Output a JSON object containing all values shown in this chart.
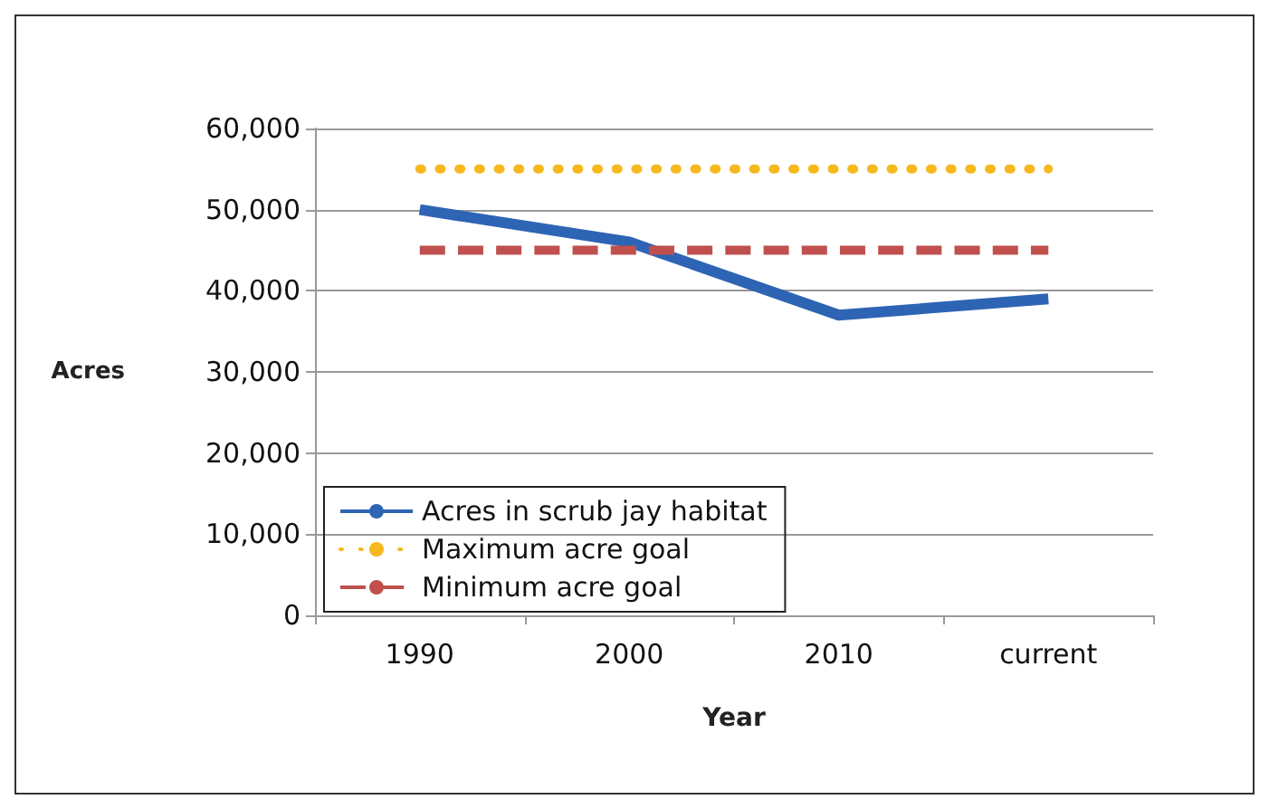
{
  "chart_data": {
    "type": "line",
    "xlabel": "Year",
    "ylabel": "Acres",
    "categories": [
      "1990",
      "2000",
      "2010",
      "current"
    ],
    "series": [
      {
        "name": "Acres in scrub jay habitat",
        "color": "#2e64b4",
        "values": [
          50000,
          46000,
          37000,
          39000
        ],
        "line_style": "solid"
      },
      {
        "name": "Maximum acre goal",
        "color": "#f6b81c",
        "values": [
          55000,
          55000,
          55000,
          55000
        ],
        "line_style": "dotted"
      },
      {
        "name": "Minimum acre goal",
        "color": "#c0504d",
        "values": [
          45000,
          45000,
          45000,
          45000
        ],
        "line_style": "dashed"
      }
    ],
    "ylim": [
      0,
      60000
    ],
    "yticks": [
      0,
      {
        "value": 10000,
        "label": "10,000"
      },
      {
        "value": 20000,
        "label": "20,000"
      },
      {
        "value": 30000,
        "label": "30,000"
      },
      {
        "value": 40000,
        "label": "40,000"
      },
      {
        "value": 50000,
        "label": "50,000"
      },
      {
        "value": 60000,
        "label": "60,000"
      }
    ],
    "grid": "y",
    "legend": "bottom left",
    "marker": "none"
  }
}
